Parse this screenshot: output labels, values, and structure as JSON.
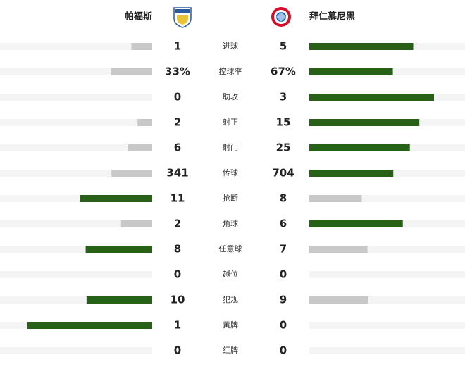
{
  "header": {
    "home_team": "帕福斯",
    "away_team": "拜仁慕尼黑"
  },
  "style": {
    "win_color": "#276118",
    "lose_color": "#c8c8c8",
    "track_color": "#f4f4f4"
  },
  "rows": [
    {
      "label": "进球",
      "home": 1,
      "away": 5
    },
    {
      "label": "控球率",
      "home": {
        "value": 33,
        "label": "33%"
      },
      "away": {
        "value": 67,
        "label": "67%"
      }
    },
    {
      "label": "助攻",
      "home": 0,
      "away": 3
    },
    {
      "label": "射正",
      "home": 2,
      "away": 15
    },
    {
      "label": "射门",
      "home": 6,
      "away": 25
    },
    {
      "label": "传球",
      "home": 341,
      "away": 704
    },
    {
      "label": "抢断",
      "home": 11,
      "away": 8
    },
    {
      "label": "角球",
      "home": 2,
      "away": 6
    },
    {
      "label": "任意球",
      "home": 8,
      "away": 7
    },
    {
      "label": "越位",
      "home": 0,
      "away": 0
    },
    {
      "label": "犯规",
      "home": 10,
      "away": 9
    },
    {
      "label": "黄牌",
      "home": 1,
      "away": 0
    },
    {
      "label": "红牌",
      "home": 0,
      "away": 0
    }
  ]
}
